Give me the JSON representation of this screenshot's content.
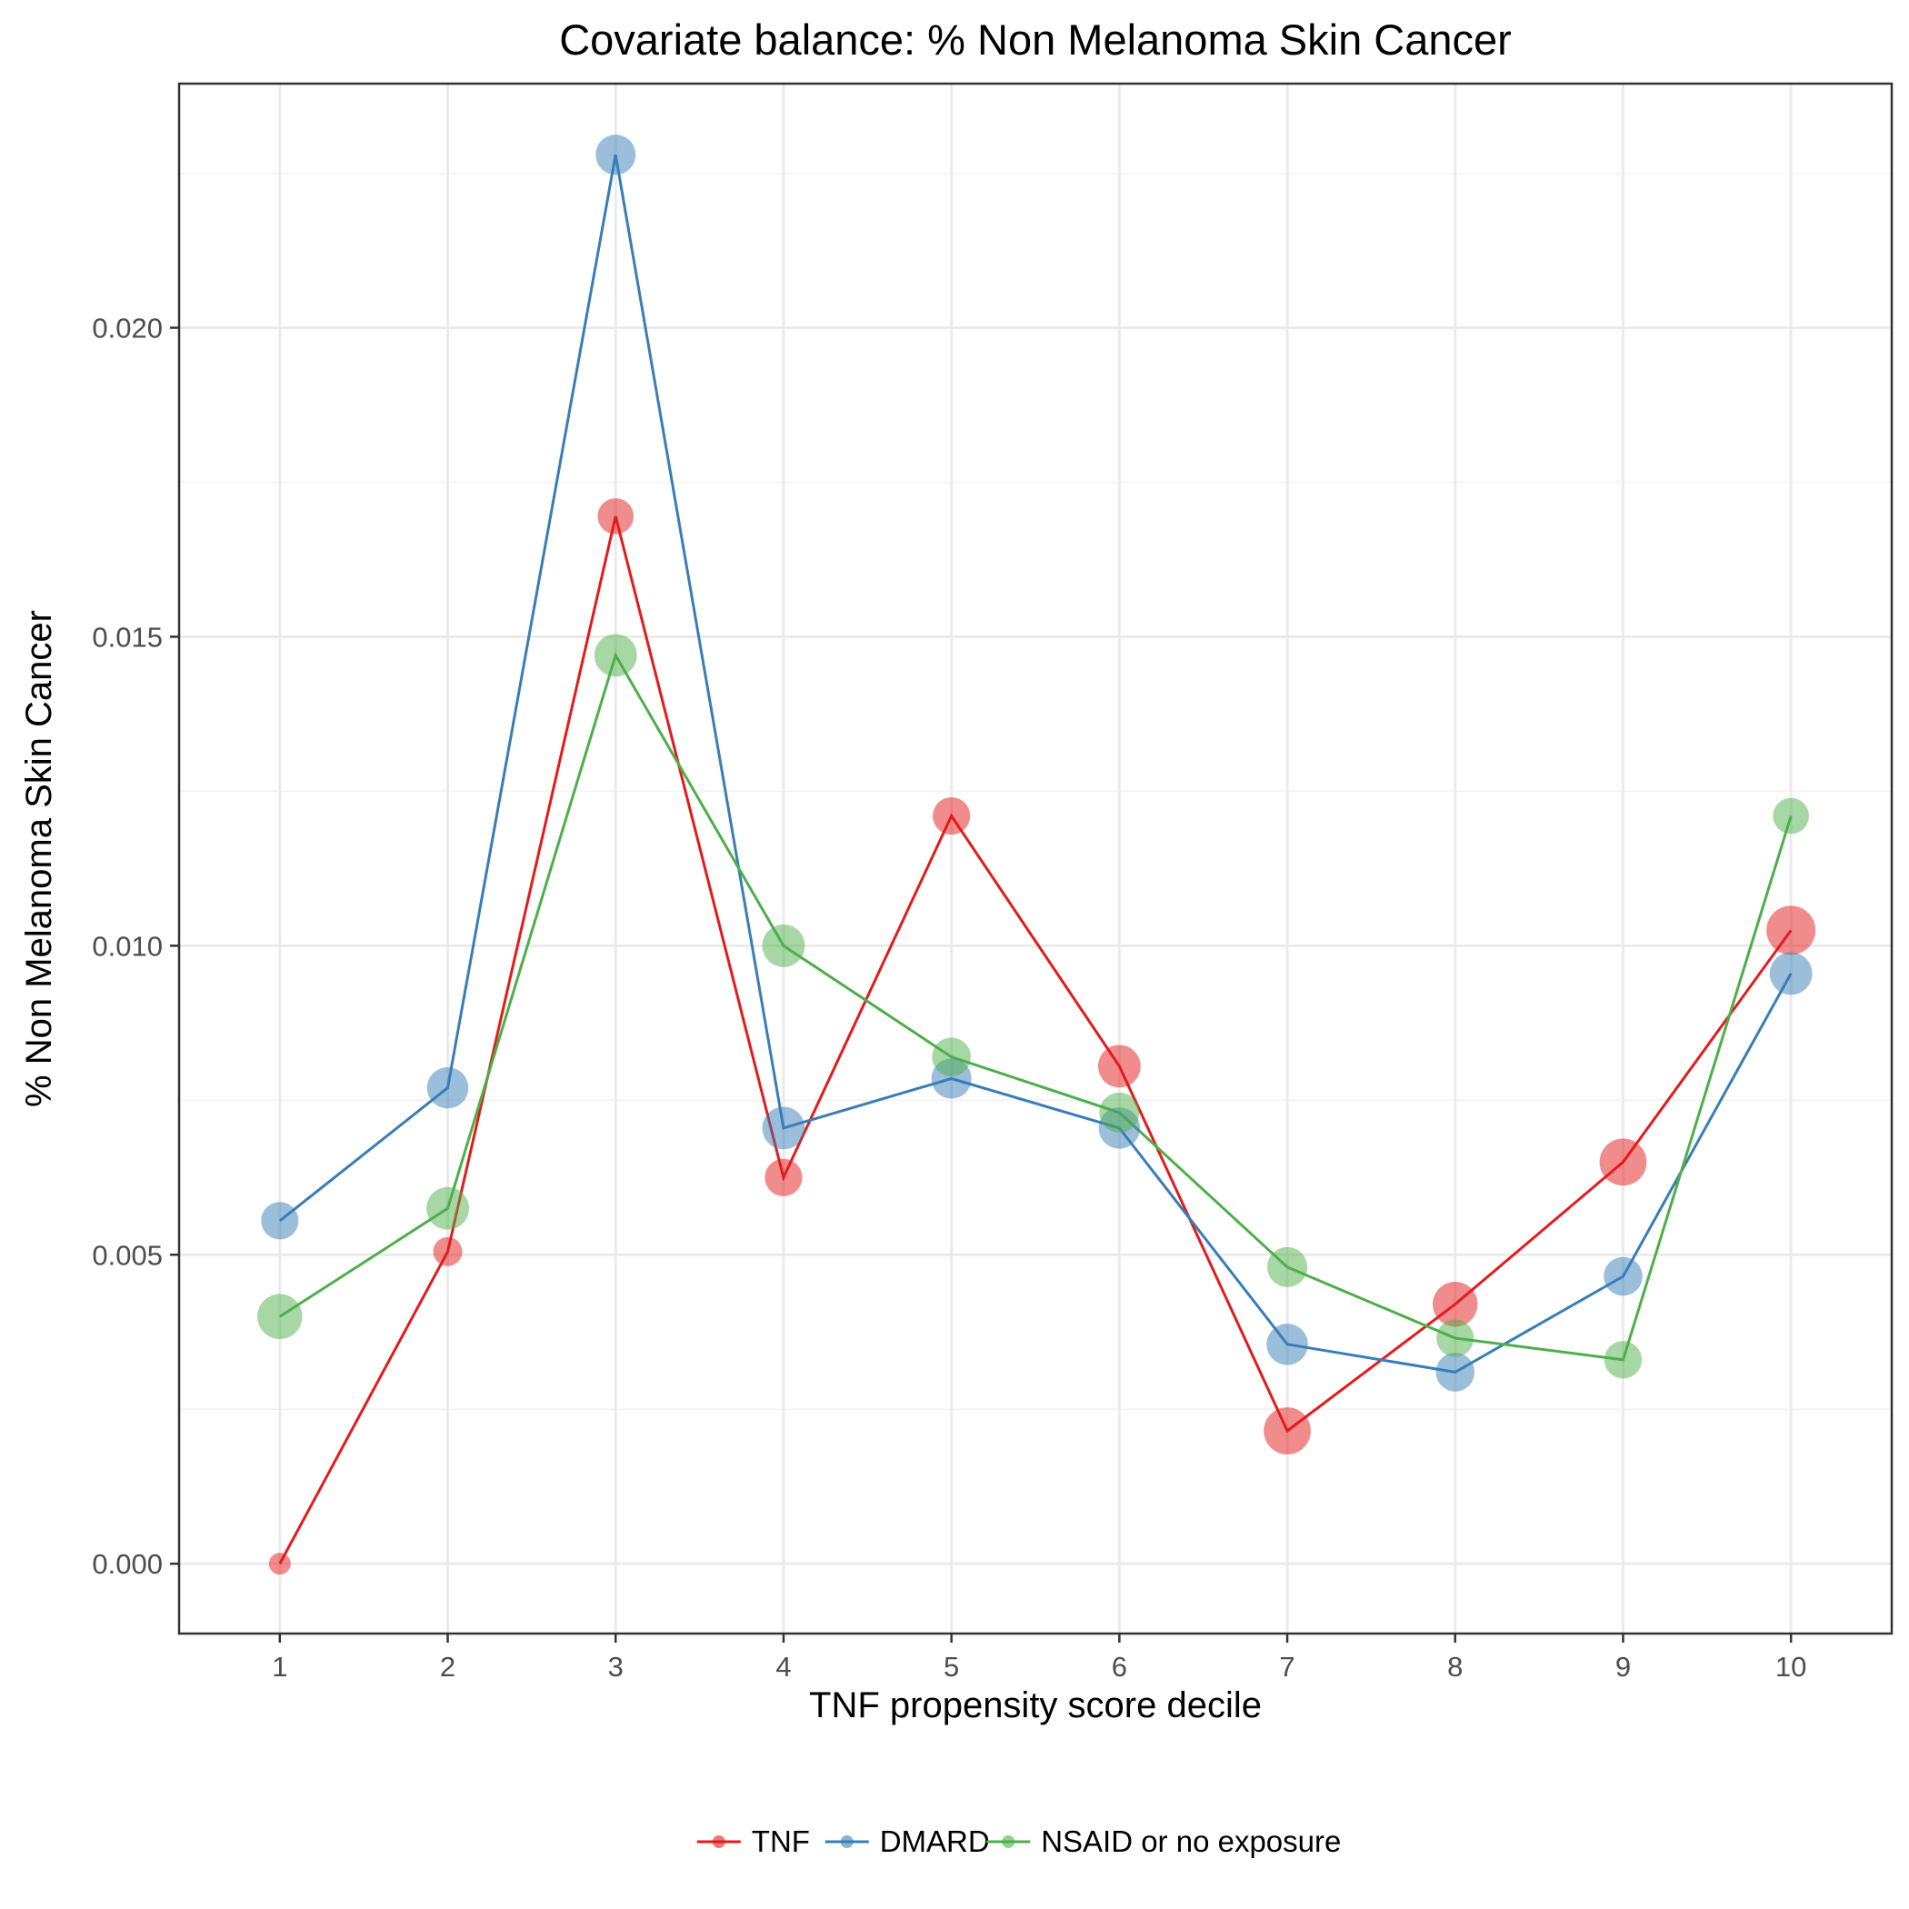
{
  "chart_data": {
    "type": "line",
    "title": "Covariate balance: % Non Melanoma Skin Cancer",
    "xlabel": "TNF propensity score decile",
    "ylabel": "% Non Melanoma Skin Cancer",
    "xlim": [
      0.4,
      10.6
    ],
    "ylim": [
      -0.00113,
      0.02395
    ],
    "x_ticks": [
      1,
      2,
      3,
      4,
      5,
      6,
      7,
      8,
      9,
      10
    ],
    "x_tick_labels": [
      "1",
      "2",
      "3",
      "4",
      "5",
      "6",
      "7",
      "8",
      "9",
      "10"
    ],
    "y_ticks": [
      0.0,
      0.005,
      0.01,
      0.015,
      0.02
    ],
    "y_tick_labels": [
      "0.000",
      "0.005",
      "0.010",
      "0.015",
      "0.020"
    ],
    "grid": true,
    "legend_position": "bottom",
    "series": [
      {
        "name": "TNF",
        "color": "#e41a1c",
        "x": [
          1,
          2,
          3,
          4,
          5,
          6,
          7,
          8,
          9,
          10
        ],
        "values": [
          0.0,
          0.00505,
          0.01695,
          0.00625,
          0.0121,
          0.00805,
          0.00215,
          0.0042,
          0.0065,
          0.01025
        ],
        "sizes": [
          0.1,
          0.25,
          0.45,
          0.5,
          0.5,
          0.7,
          0.9,
          0.8,
          0.9,
          1.0
        ]
      },
      {
        "name": "DMARD",
        "color": "#377eb8",
        "x": [
          1,
          2,
          3,
          4,
          5,
          6,
          7,
          8,
          9,
          10
        ],
        "values": [
          0.00555,
          0.0077,
          0.0228,
          0.00705,
          0.00785,
          0.00705,
          0.00355,
          0.0031,
          0.00465,
          0.00955
        ],
        "sizes": [
          0.5,
          0.65,
          0.6,
          0.7,
          0.6,
          0.65,
          0.65,
          0.55,
          0.55,
          0.7
        ]
      },
      {
        "name": "NSAID or no exposure",
        "color": "#4daf4a",
        "x": [
          1,
          2,
          3,
          4,
          5,
          6,
          7,
          8,
          9,
          10
        ],
        "values": [
          0.004,
          0.00575,
          0.0147,
          0.01,
          0.0082,
          0.0073,
          0.0048,
          0.00365,
          0.0033,
          0.0121
        ],
        "sizes": [
          0.8,
          0.7,
          0.7,
          0.7,
          0.55,
          0.6,
          0.6,
          0.5,
          0.5,
          0.45
        ]
      }
    ]
  }
}
